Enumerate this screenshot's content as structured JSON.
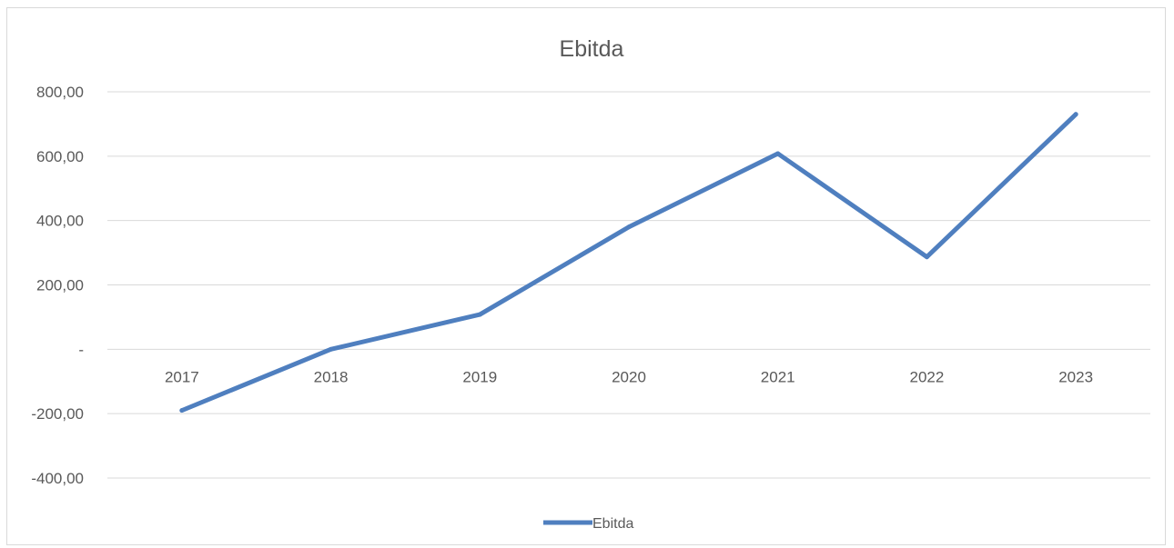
{
  "chart_data": {
    "type": "line",
    "title": "Ebitda",
    "categories": [
      "2017",
      "2018",
      "2019",
      "2020",
      "2021",
      "2022",
      "2023"
    ],
    "series": [
      {
        "name": "Ebitda",
        "values": [
          -190,
          0,
          108,
          380,
          608,
          287,
          730
        ],
        "color": "#4f7fbf"
      }
    ],
    "ylim": [
      -400,
      800
    ],
    "yticks": [
      {
        "value": 800,
        "label": "800,00"
      },
      {
        "value": 600,
        "label": "600,00"
      },
      {
        "value": 400,
        "label": "400,00"
      },
      {
        "value": 200,
        "label": "200,00"
      },
      {
        "value": 0,
        "label": "-"
      },
      {
        "value": -200,
        "label": "-200,00"
      },
      {
        "value": -400,
        "label": "-400,00"
      }
    ],
    "grid": true,
    "legend": "bottom"
  }
}
